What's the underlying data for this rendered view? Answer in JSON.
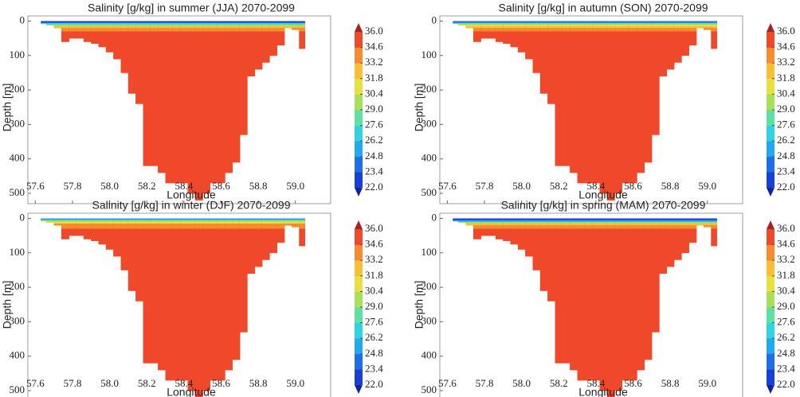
{
  "chart_data": [
    {
      "type": "heatmap",
      "title": "Salinity [g/kg] in summer (JJA) 2070-2099",
      "xlabel": "Longitude",
      "ylabel": "Depth [m]",
      "xlim": [
        57.56,
        59.19
      ],
      "xticks": [
        57.6,
        57.8,
        {
          "value": 58.0,
          "label": "58.0"
        },
        58.2,
        58.4,
        58.6,
        58.8,
        {
          "value": 59.0,
          "label": "59.0"
        }
      ],
      "ylim": [
        -15,
        530
      ],
      "y_inverted": true,
      "yticks": [
        0,
        100,
        200,
        300,
        400,
        500
      ],
      "bins": [
        57.63,
        57.66,
        57.7,
        57.74,
        57.78,
        57.82,
        57.86,
        57.9,
        57.94,
        57.98,
        58.02,
        58.06,
        58.1,
        58.14,
        58.18,
        58.22,
        58.26,
        58.3,
        58.34,
        58.38,
        58.42,
        58.46,
        58.5,
        58.54,
        58.58,
        58.62,
        58.66,
        58.7,
        58.74,
        58.78,
        58.82,
        58.86,
        58.9,
        58.94,
        58.98,
        59.02,
        59.05
      ],
      "bottom_depth": [
        8,
        12,
        20,
        60,
        50,
        50,
        60,
        65,
        75,
        90,
        110,
        150,
        210,
        240,
        420,
        420,
        440,
        470,
        470,
        470,
        500,
        520,
        500,
        470,
        470,
        440,
        410,
        330,
        160,
        140,
        120,
        100,
        70,
        20,
        25,
        80
      ],
      "depth_levels": [
        0,
        5,
        10,
        15,
        20,
        30,
        40,
        60
      ],
      "salinity": [
        23,
        27,
        30,
        32.5,
        34,
        34.8,
        35.2,
        35.4
      ],
      "clim": [
        22,
        36
      ],
      "colorbar_ticks": [
        {
          "value": 22.0,
          "label": "22.0"
        },
        23.4,
        24.8,
        26.2,
        27.6,
        {
          "value": 29.0,
          "label": "29.0"
        },
        30.4,
        31.8,
        33.2,
        34.6,
        {
          "value": 36.0,
          "label": "36.0"
        }
      ],
      "colormap": [
        "#1640d8",
        "#1d6ee8",
        "#22a8f0",
        "#30d4e0",
        "#60e0a0",
        "#a8e05a",
        "#e8e040",
        "#f8c038",
        "#f88a30",
        "#f0482a"
      ],
      "color_under": "#1020a0",
      "color_over": "#a82020"
    },
    {
      "type": "heatmap",
      "title": "Salinity [g/kg] in autumn (SON) 2070-2099",
      "xlabel": "Longitude",
      "ylabel": "Depth [m]",
      "xlim": [
        57.56,
        59.19
      ],
      "xticks": [
        57.6,
        57.8,
        {
          "value": 58.0,
          "label": "58.0"
        },
        58.2,
        58.4,
        58.6,
        58.8,
        {
          "value": 59.0,
          "label": "59.0"
        }
      ],
      "ylim": [
        -15,
        530
      ],
      "y_inverted": true,
      "yticks": [
        0,
        100,
        200,
        300,
        400,
        500
      ],
      "bins": [
        57.63,
        57.66,
        57.7,
        57.74,
        57.78,
        57.82,
        57.86,
        57.9,
        57.94,
        57.98,
        58.02,
        58.06,
        58.1,
        58.14,
        58.18,
        58.22,
        58.26,
        58.3,
        58.34,
        58.38,
        58.42,
        58.46,
        58.5,
        58.54,
        58.58,
        58.62,
        58.66,
        58.7,
        58.74,
        58.78,
        58.82,
        58.86,
        58.9,
        58.94,
        58.98,
        59.02,
        59.05
      ],
      "bottom_depth": [
        8,
        12,
        20,
        60,
        50,
        50,
        60,
        65,
        75,
        90,
        110,
        150,
        210,
        240,
        420,
        420,
        440,
        470,
        470,
        470,
        500,
        520,
        500,
        470,
        470,
        440,
        410,
        330,
        160,
        140,
        120,
        100,
        70,
        20,
        25,
        80
      ],
      "depth_levels": [
        0,
        5,
        10,
        15,
        20,
        30,
        40,
        60
      ],
      "salinity": [
        24,
        28,
        31,
        33,
        34.3,
        35,
        35.3,
        35.4
      ],
      "clim": [
        22,
        36
      ],
      "colorbar_ticks": [
        {
          "value": 22.0,
          "label": "22.0"
        },
        23.4,
        24.8,
        26.2,
        27.6,
        {
          "value": 29.0,
          "label": "29.0"
        },
        30.4,
        31.8,
        33.2,
        34.6,
        {
          "value": 36.0,
          "label": "36.0"
        }
      ],
      "colormap": [
        "#1640d8",
        "#1d6ee8",
        "#22a8f0",
        "#30d4e0",
        "#60e0a0",
        "#a8e05a",
        "#e8e040",
        "#f8c038",
        "#f88a30",
        "#f0482a"
      ],
      "color_under": "#1020a0",
      "color_over": "#a82020"
    },
    {
      "type": "heatmap",
      "title": "Salinity [g/kg] in winter (DJF) 2070-2099",
      "xlabel": "Longitude",
      "ylabel": "Depth [m]",
      "xlim": [
        57.56,
        59.19
      ],
      "xticks": [
        57.6,
        57.8,
        {
          "value": 58.0,
          "label": "58.0"
        },
        58.2,
        58.4,
        58.6,
        58.8,
        {
          "value": 59.0,
          "label": "59.0"
        }
      ],
      "ylim": [
        -15,
        530
      ],
      "y_inverted": true,
      "yticks": [
        0,
        100,
        200,
        300,
        400,
        500
      ],
      "bins": [
        57.63,
        57.66,
        57.7,
        57.74,
        57.78,
        57.82,
        57.86,
        57.9,
        57.94,
        57.98,
        58.02,
        58.06,
        58.1,
        58.14,
        58.18,
        58.22,
        58.26,
        58.3,
        58.34,
        58.38,
        58.42,
        58.46,
        58.5,
        58.54,
        58.58,
        58.62,
        58.66,
        58.7,
        58.74,
        58.78,
        58.82,
        58.86,
        58.9,
        58.94,
        58.98,
        59.02,
        59.05
      ],
      "bottom_depth": [
        8,
        12,
        20,
        60,
        50,
        50,
        60,
        65,
        75,
        90,
        110,
        150,
        210,
        240,
        420,
        420,
        440,
        470,
        470,
        470,
        500,
        520,
        500,
        470,
        470,
        440,
        410,
        330,
        160,
        140,
        120,
        100,
        70,
        20,
        25,
        80
      ],
      "depth_levels": [
        0,
        5,
        10,
        15,
        20,
        30,
        40,
        60
      ],
      "salinity": [
        26,
        29,
        31.5,
        33.2,
        34.4,
        35,
        35.3,
        35.4
      ],
      "clim": [
        22,
        36
      ],
      "colorbar_ticks": [
        {
          "value": 22.0,
          "label": "22.0"
        },
        23.4,
        24.8,
        26.2,
        27.6,
        {
          "value": 29.0,
          "label": "29.0"
        },
        30.4,
        31.8,
        33.2,
        34.6,
        {
          "value": 36.0,
          "label": "36.0"
        }
      ],
      "colormap": [
        "#1640d8",
        "#1d6ee8",
        "#22a8f0",
        "#30d4e0",
        "#60e0a0",
        "#a8e05a",
        "#e8e040",
        "#f8c038",
        "#f88a30",
        "#f0482a"
      ],
      "color_under": "#1020a0",
      "color_over": "#a82020"
    },
    {
      "type": "heatmap",
      "title": "Salinity [g/kg] in spring (MAM) 2070-2099",
      "xlabel": "Longitude",
      "ylabel": "Depth [m]",
      "xlim": [
        57.56,
        59.19
      ],
      "xticks": [
        57.6,
        57.8,
        {
          "value": 58.0,
          "label": "58.0"
        },
        58.2,
        58.4,
        58.6,
        58.8,
        {
          "value": 59.0,
          "label": "59.0"
        }
      ],
      "ylim": [
        -15,
        530
      ],
      "y_inverted": true,
      "yticks": [
        0,
        100,
        200,
        300,
        400,
        500
      ],
      "bins": [
        57.63,
        57.66,
        57.7,
        57.74,
        57.78,
        57.82,
        57.86,
        57.9,
        57.94,
        57.98,
        58.02,
        58.06,
        58.1,
        58.14,
        58.18,
        58.22,
        58.26,
        58.3,
        58.34,
        58.38,
        58.42,
        58.46,
        58.5,
        58.54,
        58.58,
        58.62,
        58.66,
        58.7,
        58.74,
        58.78,
        58.82,
        58.86,
        58.9,
        58.94,
        58.98,
        59.02,
        59.05
      ],
      "bottom_depth": [
        8,
        12,
        20,
        60,
        50,
        50,
        60,
        65,
        75,
        90,
        110,
        150,
        210,
        240,
        420,
        420,
        440,
        470,
        470,
        470,
        500,
        520,
        500,
        470,
        470,
        440,
        410,
        330,
        160,
        140,
        120,
        100,
        70,
        20,
        25,
        80
      ],
      "depth_levels": [
        0,
        5,
        10,
        15,
        20,
        30,
        40,
        60
      ],
      "salinity": [
        22.5,
        26,
        29.5,
        32.5,
        34,
        34.8,
        35.2,
        35.4
      ],
      "clim": [
        22,
        36
      ],
      "colorbar_ticks": [
        {
          "value": 22.0,
          "label": "22.0"
        },
        23.4,
        24.8,
        26.2,
        27.6,
        {
          "value": 29.0,
          "label": "29.0"
        },
        30.4,
        31.8,
        33.2,
        34.6,
        {
          "value": 36.0,
          "label": "36.0"
        }
      ],
      "colormap": [
        "#1640d8",
        "#1d6ee8",
        "#22a8f0",
        "#30d4e0",
        "#60e0a0",
        "#a8e05a",
        "#e8e040",
        "#f8c038",
        "#f88a30",
        "#f0482a"
      ],
      "color_under": "#1020a0",
      "color_over": "#a82020"
    }
  ]
}
